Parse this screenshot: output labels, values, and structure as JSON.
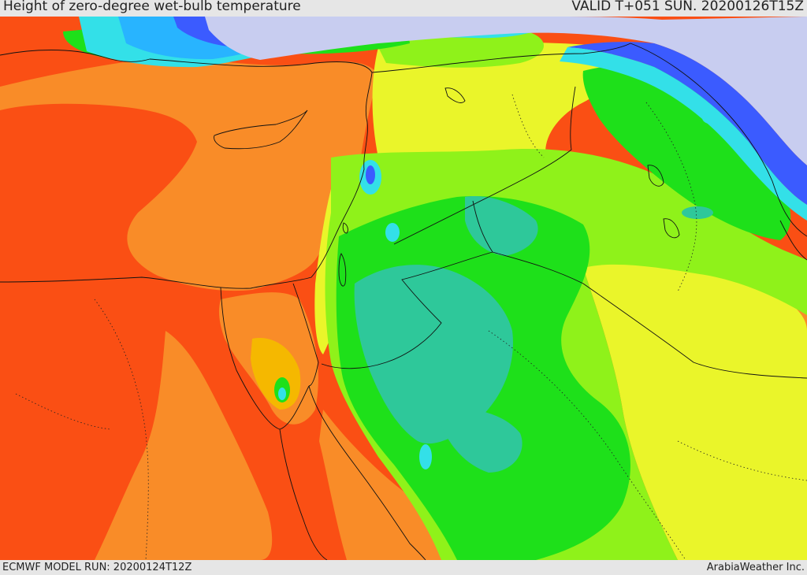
{
  "header": {
    "title": "Height of zero-degree wet-bulb temperature",
    "valid_time": "VALID T+051 SUN. 20200126T15Z"
  },
  "footer": {
    "model_run": "ECMWF MODEL RUN: 20200124T12Z",
    "credit": "ArabiaWeather Inc."
  },
  "map": {
    "region": "Eastern Mediterranean and Middle East",
    "palette": {
      "lowest": "#c8cdf0",
      "very_low": "#3b5bff",
      "low": "#28b4ff",
      "cyan": "#33e0e8",
      "teal": "#2ec89a",
      "green": "#1ee01a",
      "light_green": "#8ff21a",
      "yellow": "#eaf52a",
      "amber": "#f5b800",
      "orange": "#f98c28",
      "red_orange": "#fa4f14",
      "boundaries": "#111111"
    }
  }
}
